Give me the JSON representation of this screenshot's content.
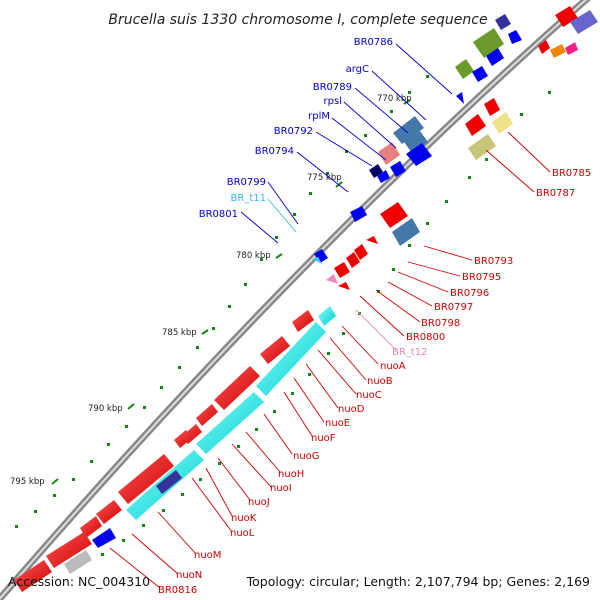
{
  "title": "Brucella suis 1330 chromosome I, complete sequence",
  "footer": {
    "accession": "Accession: NC_004310",
    "summary": "Topology: circular; Length: 2,107,794 bp; Genes: 2,169"
  },
  "ticks": [
    "770 kbp",
    "775 kbp",
    "780 kbp",
    "785 kbp",
    "790 kbp",
    "795 kbp"
  ],
  "genes_outer": [
    "BR0786",
    "argC",
    "BR0789",
    "rpsl",
    "rplM",
    "BR0792",
    "BR0794",
    "BR0799",
    "BR_t11",
    "BR0801"
  ],
  "genes_inner": [
    "BR0785",
    "BR0787",
    "BR0793",
    "BR0795",
    "BR0796",
    "BR0797",
    "BR0798",
    "BR0800",
    "BR_t12",
    "nuoA",
    "nuoB",
    "nuoC",
    "nuoD",
    "nuoE",
    "nuoF",
    "nuoG",
    "nuoH",
    "nuoI",
    "nuoJ",
    "nuoK",
    "nuoL",
    "nuoM",
    "nuoN",
    "BR0816"
  ],
  "colors": {
    "forward_label": "#0000cc",
    "reverse_label": "#cc0000",
    "trna_label": "#33bbee",
    "pseudo_label": "#ee88bb",
    "forward_cds": "#0000ee",
    "reverse_cds": "#ee0000",
    "nuo_track": "#00eeee",
    "backbone": "#777777",
    "tick": "#118811"
  }
}
